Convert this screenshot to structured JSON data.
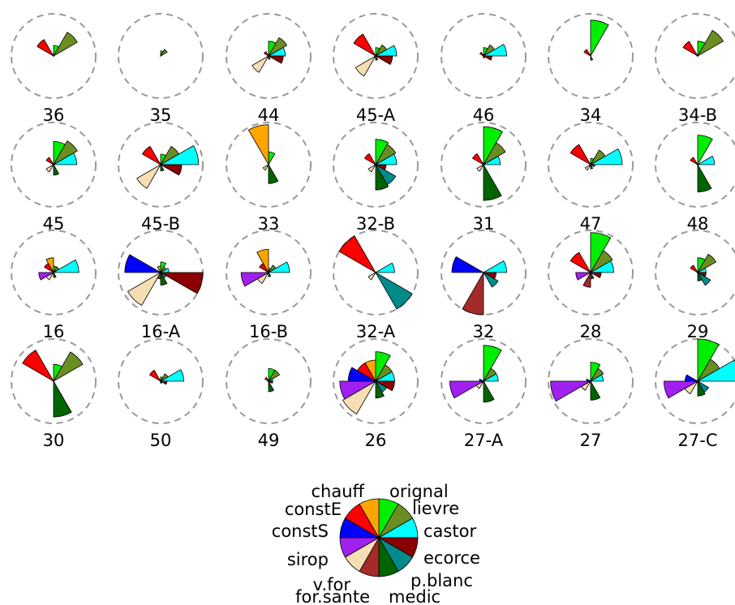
{
  "chart_data": {
    "type": "star",
    "variables": [
      "orignal",
      "lievre",
      "castor",
      "ecorce",
      "p.blanc",
      "medic",
      "for.sante",
      "v.for",
      "sirop",
      "constS",
      "constE",
      "chauff"
    ],
    "colors": {
      "orignal": "#00ee00",
      "lievre": "#6b8e23",
      "castor": "#00ffff",
      "ecorce": "#8b0000",
      "p.blanc": "#008b8b",
      "medic": "#006400",
      "for.sante": "#a52a2a",
      "v.for": "#f5deb3",
      "sirop": "#a020f0",
      "constS": "#0000ff",
      "constE": "#ff0000",
      "chauff": "#ffa500"
    },
    "max_radius_scale": 1.0,
    "stars": [
      {
        "label": "36",
        "values": [
          0.25,
          0.65,
          0,
          0,
          0,
          0,
          0,
          0,
          0,
          0,
          0.45,
          0
        ]
      },
      {
        "label": "35",
        "values": [
          0.12,
          0.18,
          0,
          0,
          0,
          0,
          0,
          0,
          0,
          0,
          0,
          0
        ]
      },
      {
        "label": "44",
        "values": [
          0.35,
          0.5,
          0.4,
          0.35,
          0,
          0.08,
          0,
          0.45,
          0,
          0,
          0.12,
          0
        ]
      },
      {
        "label": "45-A",
        "values": [
          0.2,
          0.3,
          0.5,
          0.4,
          0,
          0.1,
          0,
          0.55,
          0,
          0,
          0.6,
          0
        ]
      },
      {
        "label": "46",
        "values": [
          0.2,
          0.3,
          0.55,
          0.2,
          0,
          0.05,
          0,
          0,
          0,
          0,
          0.1,
          0
        ]
      },
      {
        "label": "34",
        "values": [
          0.85,
          0,
          0,
          0,
          0,
          0.1,
          0,
          0,
          0,
          0,
          0.18,
          0
        ]
      },
      {
        "label": "34-B",
        "values": [
          0.35,
          0.7,
          0,
          0,
          0,
          0,
          0,
          0,
          0,
          0,
          0.4,
          0
        ]
      },
      {
        "label": "45",
        "values": [
          0.55,
          0.65,
          0.55,
          0,
          0,
          0.25,
          0,
          0.2,
          0,
          0,
          0.2,
          0
        ]
      },
      {
        "label": "45-B",
        "values": [
          0.25,
          0.5,
          0.9,
          0.5,
          0,
          0.15,
          0,
          0.65,
          0,
          0,
          0.5,
          0
        ]
      },
      {
        "label": "33",
        "values": [
          0.3,
          0,
          0,
          0,
          0,
          0.45,
          0,
          0.15,
          0,
          0,
          0,
          0.95
        ]
      },
      {
        "label": "32-B",
        "values": [
          0.6,
          0.55,
          0.5,
          0.25,
          0.55,
          0.6,
          0,
          0.2,
          0,
          0,
          0.3,
          0
        ]
      },
      {
        "label": "31",
        "values": [
          0.9,
          0.6,
          0.4,
          0,
          0,
          0.85,
          0,
          0.18,
          0,
          0,
          0.3,
          0
        ]
      },
      {
        "label": "47",
        "values": [
          0.15,
          0.4,
          0.75,
          0.1,
          0,
          0.1,
          0,
          0.15,
          0,
          0,
          0.55,
          0
        ]
      },
      {
        "label": "48",
        "values": [
          0.7,
          0,
          0.4,
          0,
          0,
          0.65,
          0,
          0,
          0,
          0,
          0.2,
          0
        ]
      },
      {
        "label": "16",
        "values": [
          0.15,
          0.15,
          0.6,
          0,
          0,
          0.12,
          0,
          0.2,
          0.35,
          0,
          0.25,
          0.35
        ]
      },
      {
        "label": "16-A",
        "values": [
          0.25,
          0.15,
          0.2,
          1.0,
          0.15,
          0.3,
          0.15,
          0.9,
          0,
          0.85,
          0,
          0.15
        ]
      },
      {
        "label": "16-B",
        "values": [
          0.1,
          0.2,
          0.5,
          0,
          0,
          0.1,
          0,
          0.3,
          0.65,
          0,
          0.25,
          0.55
        ]
      },
      {
        "label": "32-A",
        "values": [
          0,
          0,
          0.45,
          0,
          1.0,
          0,
          0,
          0.2,
          0,
          0,
          1.0,
          0
        ]
      },
      {
        "label": "32",
        "values": [
          0,
          0,
          0.55,
          0.3,
          0.4,
          0,
          1.0,
          0,
          0,
          0.75,
          0,
          0
        ]
      },
      {
        "label": "28",
        "values": [
          0.95,
          0.6,
          0.55,
          0.25,
          0,
          0.15,
          0.35,
          0,
          0.35,
          0,
          0.55,
          0
        ]
      },
      {
        "label": "29",
        "values": [
          0.35,
          0.5,
          0.2,
          0.2,
          0.35,
          0.2,
          0,
          0,
          0,
          0,
          0.2,
          0
        ]
      },
      {
        "label": "30",
        "values": [
          0.4,
          0.8,
          0,
          0,
          0,
          0.85,
          0,
          0,
          0,
          0,
          0.85,
          0
        ]
      },
      {
        "label": "50",
        "values": [
          0.1,
          0.2,
          0.55,
          0.15,
          0,
          0.05,
          0,
          0,
          0,
          0,
          0.3,
          0
        ]
      },
      {
        "label": "49",
        "values": [
          0.3,
          0.3,
          0.1,
          0.1,
          0,
          0.25,
          0,
          0,
          0,
          0,
          0.1,
          0
        ]
      },
      {
        "label": "26",
        "values": [
          0.7,
          0.45,
          0.45,
          0.45,
          0.3,
          0.4,
          0,
          0.9,
          0.85,
          0.65,
          0.5,
          0.5
        ]
      },
      {
        "label": "27-A",
        "values": [
          0.85,
          0.35,
          0.35,
          0,
          0,
          0.5,
          0,
          0.2,
          0.8,
          0.1,
          0,
          0
        ]
      },
      {
        "label": "27",
        "values": [
          0.45,
          0.35,
          0.3,
          0,
          0,
          0.45,
          0,
          0.25,
          0.95,
          0.1,
          0,
          0
        ]
      },
      {
        "label": "27-C",
        "values": [
          1.0,
          0.6,
          1.0,
          0,
          0.3,
          0.35,
          0,
          0.35,
          0.8,
          0.3,
          0,
          0
        ]
      }
    ]
  }
}
